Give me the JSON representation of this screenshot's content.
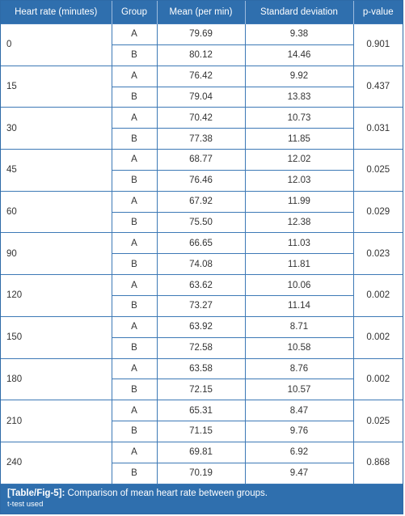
{
  "table": {
    "headers": [
      "Heart rate (minutes)",
      "Group",
      "Mean (per min)",
      "Standard deviation",
      "p-value"
    ],
    "rows": [
      {
        "time": "0",
        "p": "0.901",
        "groups": [
          {
            "g": "A",
            "mean": "79.69",
            "sd": "9.38"
          },
          {
            "g": "B",
            "mean": "80.12",
            "sd": "14.46"
          }
        ]
      },
      {
        "time": "15",
        "p": "0.437",
        "groups": [
          {
            "g": "A",
            "mean": "76.42",
            "sd": "9.92"
          },
          {
            "g": "B",
            "mean": "79.04",
            "sd": "13.83"
          }
        ]
      },
      {
        "time": "30",
        "p": "0.031",
        "groups": [
          {
            "g": "A",
            "mean": "70.42",
            "sd": "10.73"
          },
          {
            "g": "B",
            "mean": "77.38",
            "sd": "11.85"
          }
        ]
      },
      {
        "time": "45",
        "p": "0.025",
        "groups": [
          {
            "g": "A",
            "mean": "68.77",
            "sd": "12.02"
          },
          {
            "g": "B",
            "mean": "76.46",
            "sd": "12.03"
          }
        ]
      },
      {
        "time": "60",
        "p": "0.029",
        "groups": [
          {
            "g": "A",
            "mean": "67.92",
            "sd": "11.99"
          },
          {
            "g": "B",
            "mean": "75.50",
            "sd": "12.38"
          }
        ]
      },
      {
        "time": "90",
        "p": "0.023",
        "groups": [
          {
            "g": "A",
            "mean": "66.65",
            "sd": "11.03"
          },
          {
            "g": "B",
            "mean": "74.08",
            "sd": "11.81"
          }
        ]
      },
      {
        "time": "120",
        "p": "0.002",
        "groups": [
          {
            "g": "A",
            "mean": "63.62",
            "sd": "10.06"
          },
          {
            "g": "B",
            "mean": "73.27",
            "sd": "11.14"
          }
        ]
      },
      {
        "time": "150",
        "p": "0.002",
        "groups": [
          {
            "g": "A",
            "mean": "63.92",
            "sd": "8.71"
          },
          {
            "g": "B",
            "mean": "72.58",
            "sd": "10.58"
          }
        ]
      },
      {
        "time": "180",
        "p": "0.002",
        "groups": [
          {
            "g": "A",
            "mean": "63.58",
            "sd": "8.76"
          },
          {
            "g": "B",
            "mean": "72.15",
            "sd": "10.57"
          }
        ]
      },
      {
        "time": "210",
        "p": "0.025",
        "groups": [
          {
            "g": "A",
            "mean": "65.31",
            "sd": "8.47"
          },
          {
            "g": "B",
            "mean": "71.15",
            "sd": "9.76"
          }
        ]
      },
      {
        "time": "240",
        "p": "0.868",
        "groups": [
          {
            "g": "A",
            "mean": "69.81",
            "sd": "6.92"
          },
          {
            "g": "B",
            "mean": "70.19",
            "sd": "9.47"
          }
        ]
      }
    ]
  },
  "caption": {
    "label": "[Table/Fig-5]:",
    "text": " Comparison of mean heart rate between groups.",
    "note": "t-test used"
  },
  "colors": {
    "header_bg": "#2f6fae",
    "border": "#3d79b6"
  }
}
